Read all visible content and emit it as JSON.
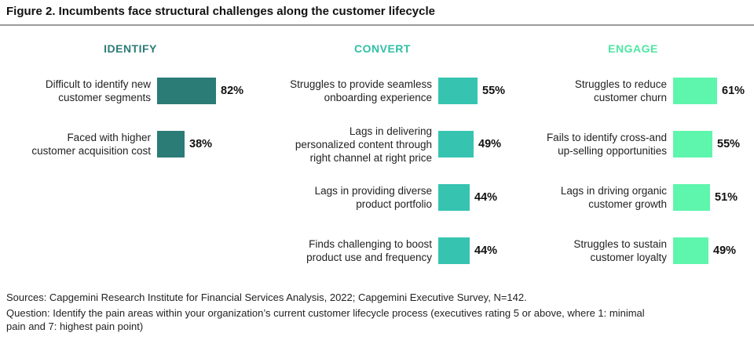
{
  "title": "Figure 2. Incumbents face structural challenges along the customer lifecycle",
  "chart_data": {
    "type": "bar",
    "orientation": "horizontal",
    "title": "Figure 2. Incumbents face structural challenges along the customer lifecycle",
    "xlim": [
      0,
      100
    ],
    "unit": "%",
    "groups": [
      {
        "name": "IDENTIFY",
        "color": "#2b7b76",
        "items": [
          {
            "label": "Difficult to identify new customer segments",
            "lines": [
              "Difficult to identify new",
              "customer segments"
            ],
            "value": 82,
            "value_label": "82%"
          },
          {
            "label": "Faced with higher customer acquisition cost",
            "lines": [
              "Faced with higher",
              "customer acquisition cost"
            ],
            "value": 38,
            "value_label": "38%"
          }
        ]
      },
      {
        "name": "CONVERT",
        "color": "#36c4b0",
        "items": [
          {
            "label": "Struggles to provide seamless onboarding experience",
            "lines": [
              "Struggles to provide seamless",
              "onboarding experience"
            ],
            "value": 55,
            "value_label": "55%"
          },
          {
            "label": "Lags in delivering personalized content through right channel at right price",
            "lines": [
              "Lags in delivering",
              "personalized content through",
              "right channel at right price"
            ],
            "value": 49,
            "value_label": "49%"
          },
          {
            "label": "Lags in providing diverse product portfolio",
            "lines": [
              "Lags in providing diverse",
              "product portfolio"
            ],
            "value": 44,
            "value_label": "44%"
          },
          {
            "label": "Finds challenging to boost product use and frequency",
            "lines": [
              "Finds challenging to boost",
              "product use and frequency"
            ],
            "value": 44,
            "value_label": "44%"
          }
        ]
      },
      {
        "name": "ENGAGE",
        "color": "#5ef5ad",
        "items": [
          {
            "label": "Struggles to reduce customer churn",
            "lines": [
              "Struggles to reduce",
              "customer churn"
            ],
            "value": 61,
            "value_label": "61%"
          },
          {
            "label": "Fails to identify cross-and up-selling opportunities",
            "lines": [
              "Fails to identify cross-and",
              "up-selling opportunities"
            ],
            "value": 55,
            "value_label": "55%"
          },
          {
            "label": "Lags in driving organic customer growth",
            "lines": [
              "Lags in driving organic",
              "customer growth"
            ],
            "value": 51,
            "value_label": "51%"
          },
          {
            "label": "Struggles to sustain customer loyalty",
            "lines": [
              "Struggles to sustain",
              "customer loyalty"
            ],
            "value": 49,
            "value_label": "49%"
          }
        ]
      }
    ]
  },
  "footer": {
    "sources": "Sources: Capgemini Research Institute for Financial Services Analysis, 2022; Capgemini Executive Survey, N=142.",
    "question_line1": "Question: Identify the pain areas within your organization’s current customer lifecycle process (executives rating  5 or above, where 1: minimal",
    "question_line2": "pain and 7: highest pain point)"
  }
}
